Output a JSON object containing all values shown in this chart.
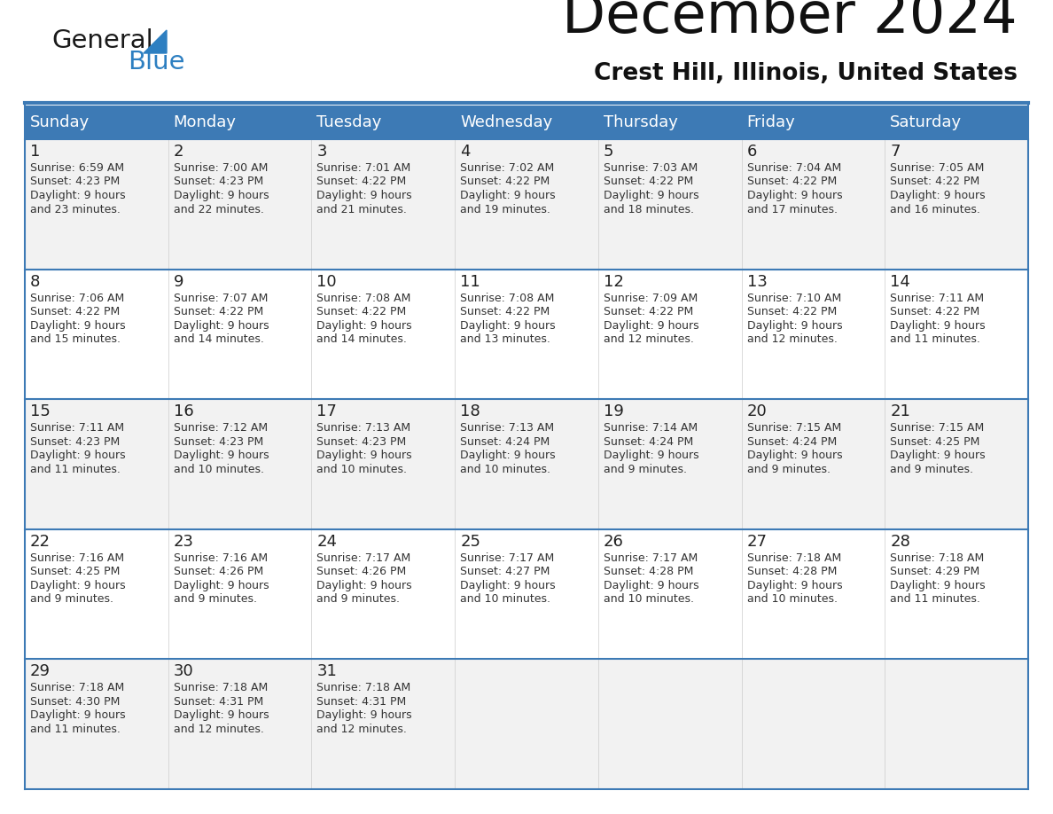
{
  "title": "December 2024",
  "subtitle": "Crest Hill, Illinois, United States",
  "days_of_week": [
    "Sunday",
    "Monday",
    "Tuesday",
    "Wednesday",
    "Thursday",
    "Friday",
    "Saturday"
  ],
  "header_bg": "#3d7ab5",
  "header_text_color": "#ffffff",
  "cell_bg_odd": "#f2f2f2",
  "cell_bg_even": "#ffffff",
  "row_line_color": "#3d7ab5",
  "text_color": "#333333",
  "day_number_color": "#222222",
  "calendar_data": [
    [
      {
        "day": 1,
        "sunrise": "6:59 AM",
        "sunset": "4:23 PM",
        "daylight_line1": "9 hours",
        "daylight_line2": "and 23 minutes."
      },
      {
        "day": 2,
        "sunrise": "7:00 AM",
        "sunset": "4:23 PM",
        "daylight_line1": "9 hours",
        "daylight_line2": "and 22 minutes."
      },
      {
        "day": 3,
        "sunrise": "7:01 AM",
        "sunset": "4:22 PM",
        "daylight_line1": "9 hours",
        "daylight_line2": "and 21 minutes."
      },
      {
        "day": 4,
        "sunrise": "7:02 AM",
        "sunset": "4:22 PM",
        "daylight_line1": "9 hours",
        "daylight_line2": "and 19 minutes."
      },
      {
        "day": 5,
        "sunrise": "7:03 AM",
        "sunset": "4:22 PM",
        "daylight_line1": "9 hours",
        "daylight_line2": "and 18 minutes."
      },
      {
        "day": 6,
        "sunrise": "7:04 AM",
        "sunset": "4:22 PM",
        "daylight_line1": "9 hours",
        "daylight_line2": "and 17 minutes."
      },
      {
        "day": 7,
        "sunrise": "7:05 AM",
        "sunset": "4:22 PM",
        "daylight_line1": "9 hours",
        "daylight_line2": "and 16 minutes."
      }
    ],
    [
      {
        "day": 8,
        "sunrise": "7:06 AM",
        "sunset": "4:22 PM",
        "daylight_line1": "9 hours",
        "daylight_line2": "and 15 minutes."
      },
      {
        "day": 9,
        "sunrise": "7:07 AM",
        "sunset": "4:22 PM",
        "daylight_line1": "9 hours",
        "daylight_line2": "and 14 minutes."
      },
      {
        "day": 10,
        "sunrise": "7:08 AM",
        "sunset": "4:22 PM",
        "daylight_line1": "9 hours",
        "daylight_line2": "and 14 minutes."
      },
      {
        "day": 11,
        "sunrise": "7:08 AM",
        "sunset": "4:22 PM",
        "daylight_line1": "9 hours",
        "daylight_line2": "and 13 minutes."
      },
      {
        "day": 12,
        "sunrise": "7:09 AM",
        "sunset": "4:22 PM",
        "daylight_line1": "9 hours",
        "daylight_line2": "and 12 minutes."
      },
      {
        "day": 13,
        "sunrise": "7:10 AM",
        "sunset": "4:22 PM",
        "daylight_line1": "9 hours",
        "daylight_line2": "and 12 minutes."
      },
      {
        "day": 14,
        "sunrise": "7:11 AM",
        "sunset": "4:22 PM",
        "daylight_line1": "9 hours",
        "daylight_line2": "and 11 minutes."
      }
    ],
    [
      {
        "day": 15,
        "sunrise": "7:11 AM",
        "sunset": "4:23 PM",
        "daylight_line1": "9 hours",
        "daylight_line2": "and 11 minutes."
      },
      {
        "day": 16,
        "sunrise": "7:12 AM",
        "sunset": "4:23 PM",
        "daylight_line1": "9 hours",
        "daylight_line2": "and 10 minutes."
      },
      {
        "day": 17,
        "sunrise": "7:13 AM",
        "sunset": "4:23 PM",
        "daylight_line1": "9 hours",
        "daylight_line2": "and 10 minutes."
      },
      {
        "day": 18,
        "sunrise": "7:13 AM",
        "sunset": "4:24 PM",
        "daylight_line1": "9 hours",
        "daylight_line2": "and 10 minutes."
      },
      {
        "day": 19,
        "sunrise": "7:14 AM",
        "sunset": "4:24 PM",
        "daylight_line1": "9 hours",
        "daylight_line2": "and 9 minutes."
      },
      {
        "day": 20,
        "sunrise": "7:15 AM",
        "sunset": "4:24 PM",
        "daylight_line1": "9 hours",
        "daylight_line2": "and 9 minutes."
      },
      {
        "day": 21,
        "sunrise": "7:15 AM",
        "sunset": "4:25 PM",
        "daylight_line1": "9 hours",
        "daylight_line2": "and 9 minutes."
      }
    ],
    [
      {
        "day": 22,
        "sunrise": "7:16 AM",
        "sunset": "4:25 PM",
        "daylight_line1": "9 hours",
        "daylight_line2": "and 9 minutes."
      },
      {
        "day": 23,
        "sunrise": "7:16 AM",
        "sunset": "4:26 PM",
        "daylight_line1": "9 hours",
        "daylight_line2": "and 9 minutes."
      },
      {
        "day": 24,
        "sunrise": "7:17 AM",
        "sunset": "4:26 PM",
        "daylight_line1": "9 hours",
        "daylight_line2": "and 9 minutes."
      },
      {
        "day": 25,
        "sunrise": "7:17 AM",
        "sunset": "4:27 PM",
        "daylight_line1": "9 hours",
        "daylight_line2": "and 10 minutes."
      },
      {
        "day": 26,
        "sunrise": "7:17 AM",
        "sunset": "4:28 PM",
        "daylight_line1": "9 hours",
        "daylight_line2": "and 10 minutes."
      },
      {
        "day": 27,
        "sunrise": "7:18 AM",
        "sunset": "4:28 PM",
        "daylight_line1": "9 hours",
        "daylight_line2": "and 10 minutes."
      },
      {
        "day": 28,
        "sunrise": "7:18 AM",
        "sunset": "4:29 PM",
        "daylight_line1": "9 hours",
        "daylight_line2": "and 11 minutes."
      }
    ],
    [
      {
        "day": 29,
        "sunrise": "7:18 AM",
        "sunset": "4:30 PM",
        "daylight_line1": "9 hours",
        "daylight_line2": "and 11 minutes."
      },
      {
        "day": 30,
        "sunrise": "7:18 AM",
        "sunset": "4:31 PM",
        "daylight_line1": "9 hours",
        "daylight_line2": "and 12 minutes."
      },
      {
        "day": 31,
        "sunrise": "7:18 AM",
        "sunset": "4:31 PM",
        "daylight_line1": "9 hours",
        "daylight_line2": "and 12 minutes."
      },
      null,
      null,
      null,
      null
    ]
  ],
  "logo_general_color": "#1a1a1a",
  "logo_blue_color": "#2d7fc1",
  "figsize": [
    11.88,
    9.18
  ],
  "dpi": 100
}
